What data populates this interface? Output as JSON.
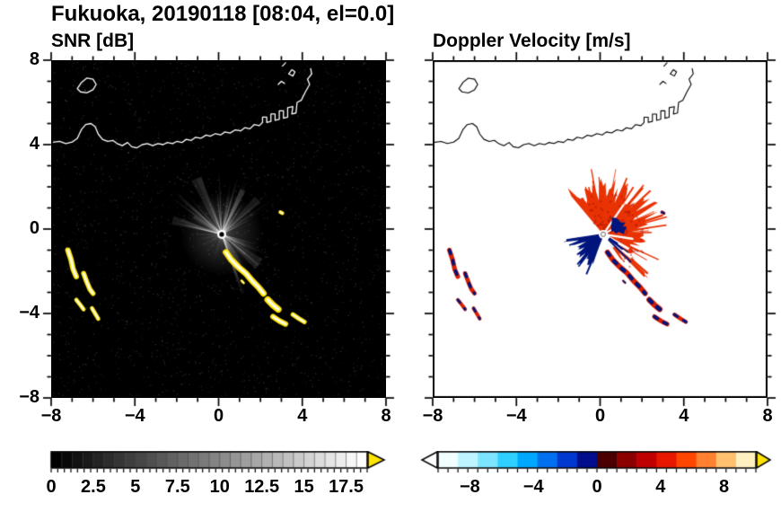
{
  "title": "Fukuoka, 20190118 [08:04, el=0.0]",
  "chart_data": {
    "type": "heatmap",
    "title": "Fukuoka, 20190118 [08:04, el=0.0]",
    "station": "Fukuoka",
    "date": "20190118",
    "time": "08:04",
    "elevation": "el=0.0",
    "axis": {
      "range": [
        -8,
        8
      ],
      "ticks": [
        -8,
        -4,
        0,
        4,
        8
      ],
      "minor_step": 1,
      "tick_labels_x": [
        "−8",
        "−4",
        "0",
        "4",
        "8"
      ],
      "tick_labels_y": [
        "8",
        "4",
        "0",
        "−4",
        "−8"
      ]
    },
    "panels": [
      {
        "id": "snr",
        "title": "SNR [dB]",
        "background": "#000000",
        "coast_color": "#ffffff",
        "colorbar": {
          "style": "grayscale",
          "bar_range": [
            0,
            18.75
          ],
          "tick_values": [
            0,
            2.5,
            5,
            7.5,
            10,
            12.5,
            15,
            17.5
          ],
          "tick_labels": [
            "0",
            "2.5",
            "5",
            "7.5",
            "10",
            "12.5",
            "15",
            "17.5"
          ],
          "over_arrow_color": "#ffe400"
        }
      },
      {
        "id": "vel",
        "title": "Doppler Velocity [m/s]",
        "background": "#ffffff",
        "coast_color": "#000000",
        "colorbar": {
          "style": "doppler",
          "bar_range": [
            -10,
            10
          ],
          "tick_values": [
            -8,
            -4,
            0,
            4,
            8
          ],
          "tick_labels": [
            "−8",
            "−4",
            "0",
            "4",
            "8"
          ],
          "segment_colors": [
            "#f2ffff",
            "#bdf4ff",
            "#7ce4ff",
            "#2fd0ff",
            "#00a8ff",
            "#0070f0",
            "#0038d0",
            "#000e8c",
            "#4a0000",
            "#8c0000",
            "#c00000",
            "#e81800",
            "#ff4600",
            "#ff8030",
            "#ffc070",
            "#fff0c0"
          ],
          "under_arrow_color": "#ffffff",
          "over_arrow_color": "#ffe400"
        }
      }
    ],
    "radar_center": [
      0.15,
      -0.25
    ],
    "snr_style": {
      "fringe": "#ffe400",
      "core": "#ffffff"
    },
    "snr_field": {
      "noise_points": 2200,
      "n_rays": 150,
      "bright_sectors": [
        [
          25,
          170
        ],
        [
          -75,
          -15
        ]
      ],
      "max_range": 3.2
    },
    "doppler_field": {
      "red": {
        "a0": -55,
        "a1": 132,
        "r_base": 2.05,
        "color": "#e93305",
        "dark": "#a01000"
      },
      "navy": {
        "a0": 188,
        "a1": 252,
        "r_base": 1.55,
        "color": "#00157d"
      },
      "navy_blob": {
        "cx": 0.8,
        "cy": 0.12,
        "r": 0.4
      }
    },
    "echo_paths": [
      {
        "pts": [
          [
            -7.2,
            -1.0
          ],
          [
            -7.05,
            -1.45
          ],
          [
            -6.95,
            -1.9
          ],
          [
            -6.8,
            -2.25
          ]
        ],
        "w": 0.26
      },
      {
        "pts": [
          [
            -6.45,
            -2.1
          ],
          [
            -6.3,
            -2.5
          ],
          [
            -6.15,
            -2.85
          ],
          [
            -6.0,
            -3.05
          ]
        ],
        "w": 0.24
      },
      {
        "pts": [
          [
            -6.8,
            -3.35
          ],
          [
            -6.6,
            -3.6
          ],
          [
            -6.45,
            -3.8
          ]
        ],
        "w": 0.2
      },
      {
        "pts": [
          [
            -6.05,
            -3.75
          ],
          [
            -5.9,
            -4.0
          ],
          [
            -5.75,
            -4.25
          ]
        ],
        "w": 0.2
      },
      {
        "pts": [
          [
            0.35,
            -1.1
          ],
          [
            0.6,
            -1.45
          ],
          [
            0.95,
            -1.8
          ],
          [
            1.3,
            -2.1
          ],
          [
            1.6,
            -2.45
          ],
          [
            1.9,
            -2.75
          ],
          [
            2.15,
            -3.05
          ]
        ],
        "w": 0.3
      },
      {
        "pts": [
          [
            2.35,
            -3.35
          ],
          [
            2.6,
            -3.6
          ],
          [
            2.85,
            -3.8
          ]
        ],
        "w": 0.32
      },
      {
        "pts": [
          [
            2.6,
            -4.15
          ],
          [
            2.9,
            -4.35
          ],
          [
            3.2,
            -4.5
          ]
        ],
        "w": 0.26
      },
      {
        "pts": [
          [
            3.55,
            -4.05
          ],
          [
            3.85,
            -4.25
          ],
          [
            4.1,
            -4.4
          ]
        ],
        "w": 0.22
      },
      {
        "pts": [
          [
            2.95,
            0.8
          ],
          [
            3.05,
            0.75
          ]
        ],
        "w": 0.18
      },
      {
        "pts": [
          [
            1.1,
            -2.45
          ],
          [
            1.2,
            -2.55
          ]
        ],
        "w": 0.12
      }
    ],
    "coastline": [
      [
        [
          -8,
          4.1
        ],
        [
          -7.6,
          4.15
        ],
        [
          -7.3,
          4.05
        ],
        [
          -7.0,
          4.12
        ],
        [
          -6.75,
          4.3
        ],
        [
          -6.55,
          4.72
        ],
        [
          -6.35,
          4.95
        ],
        [
          -6.1,
          5.0
        ],
        [
          -5.9,
          4.85
        ],
        [
          -5.75,
          4.5
        ],
        [
          -5.55,
          4.25
        ],
        [
          -5.3,
          4.15
        ],
        [
          -5.05,
          4.2
        ],
        [
          -4.85,
          4.05
        ],
        [
          -4.6,
          3.95
        ],
        [
          -4.35,
          4.1
        ],
        [
          -4.15,
          3.9
        ],
        [
          -3.9,
          3.85
        ],
        [
          -3.65,
          4.0
        ],
        [
          -3.4,
          4.05
        ],
        [
          -3.15,
          3.95
        ],
        [
          -2.9,
          4.05
        ],
        [
          -2.65,
          4.0
        ],
        [
          -2.45,
          4.1
        ],
        [
          -2.2,
          4.05
        ],
        [
          -2.0,
          4.15
        ],
        [
          -1.75,
          4.1
        ],
        [
          -1.55,
          4.25
        ],
        [
          -1.3,
          4.2
        ],
        [
          -1.1,
          4.35
        ],
        [
          -0.85,
          4.3
        ],
        [
          -0.6,
          4.45
        ],
        [
          -0.4,
          4.4
        ],
        [
          -0.15,
          4.52
        ],
        [
          0.1,
          4.46
        ],
        [
          0.3,
          4.6
        ],
        [
          0.55,
          4.55
        ],
        [
          0.8,
          4.7
        ],
        [
          1.05,
          4.65
        ],
        [
          1.25,
          4.8
        ],
        [
          1.5,
          4.75
        ],
        [
          1.7,
          4.95
        ],
        [
          1.95,
          4.9
        ],
        [
          2.1,
          5.05
        ],
        [
          2.1,
          5.3
        ],
        [
          2.3,
          5.3
        ],
        [
          2.3,
          5.05
        ],
        [
          2.5,
          5.1
        ],
        [
          2.5,
          5.45
        ],
        [
          2.7,
          5.45
        ],
        [
          2.7,
          5.15
        ],
        [
          2.9,
          5.2
        ],
        [
          2.9,
          5.6
        ],
        [
          3.1,
          5.6
        ],
        [
          3.1,
          5.25
        ],
        [
          3.3,
          5.3
        ],
        [
          3.3,
          5.75
        ],
        [
          3.55,
          5.8
        ],
        [
          3.5,
          5.45
        ],
        [
          3.7,
          5.5
        ],
        [
          3.75,
          6.0
        ],
        [
          3.95,
          6.1
        ],
        [
          4.15,
          6.5
        ],
        [
          4.35,
          6.85
        ],
        [
          4.25,
          7.1
        ],
        [
          4.45,
          7.35
        ],
        [
          4.4,
          7.6
        ]
      ],
      [
        [
          -6.75,
          6.65
        ],
        [
          -6.55,
          6.95
        ],
        [
          -6.3,
          7.15
        ],
        [
          -6.0,
          7.1
        ],
        [
          -5.85,
          6.85
        ],
        [
          -6.0,
          6.6
        ],
        [
          -6.3,
          6.45
        ],
        [
          -6.6,
          6.5
        ],
        [
          -6.75,
          6.65
        ]
      ],
      [
        [
          2.85,
          6.85
        ],
        [
          3.0,
          7.0
        ],
        [
          3.15,
          6.9
        ]
      ],
      [
        [
          3.35,
          7.35
        ],
        [
          3.5,
          7.55
        ],
        [
          3.65,
          7.45
        ],
        [
          3.55,
          7.25
        ],
        [
          3.35,
          7.35
        ]
      ],
      [
        [
          3.05,
          7.72
        ],
        [
          3.2,
          7.88
        ]
      ]
    ]
  }
}
